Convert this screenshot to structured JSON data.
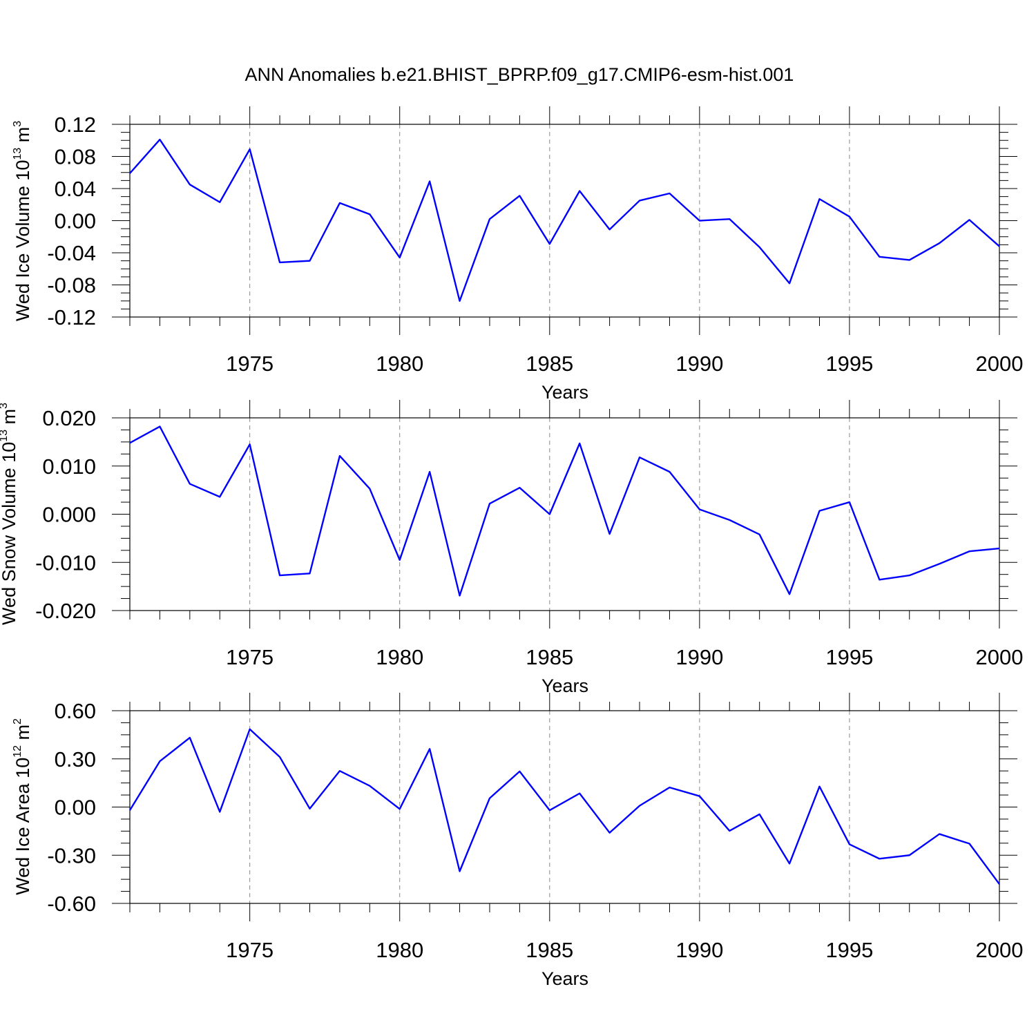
{
  "title": "ANN Anomalies b.e21.BHIST_BPRP.f09_g17.CMIP6-esm-hist.001",
  "colors": {
    "series": "#0000ff",
    "grid": "#888888",
    "axes": "#000000"
  },
  "chart_data": [
    {
      "type": "line",
      "ylabel": {
        "text": "Wed Ice Volume 10",
        "exp": "13",
        "unit": " m",
        "unit_exp": "3"
      },
      "xlabel": "Years",
      "xlim": [
        1971,
        2000
      ],
      "ylim": [
        -0.12,
        0.12
      ],
      "yticks": [
        "0.12",
        "0.08",
        "0.04",
        "0.00",
        "-0.04",
        "-0.08",
        "-0.12"
      ],
      "ytick_values": [
        0.12,
        0.08,
        0.04,
        0.0,
        -0.04,
        -0.08,
        -0.12
      ],
      "xticks": [
        "1975",
        "1980",
        "1985",
        "1990",
        "1995",
        "2000"
      ],
      "xtick_values": [
        1975,
        1980,
        1985,
        1990,
        1995,
        2000
      ],
      "grid": "vertical dashed at labeled years",
      "x": [
        1971,
        1972,
        1973,
        1974,
        1975,
        1976,
        1977,
        1978,
        1979,
        1980,
        1981,
        1982,
        1983,
        1984,
        1985,
        1986,
        1987,
        1988,
        1989,
        1990,
        1991,
        1992,
        1993,
        1994,
        1995,
        1996,
        1997,
        1998,
        1999,
        2000
      ],
      "values": [
        0.059,
        0.101,
        0.045,
        0.023,
        0.089,
        -0.052,
        -0.05,
        0.022,
        0.008,
        -0.046,
        0.049,
        -0.1,
        0.002,
        0.031,
        -0.029,
        0.037,
        -0.011,
        0.025,
        0.034,
        0.0,
        0.002,
        -0.033,
        -0.078,
        0.027,
        0.005,
        -0.045,
        -0.049,
        -0.028,
        0.001,
        -0.032
      ]
    },
    {
      "type": "line",
      "ylabel": {
        "text": "Wed Snow Volume 10",
        "exp": "13",
        "unit": " m",
        "unit_exp": "3"
      },
      "xlabel": "Years",
      "xlim": [
        1971,
        2000
      ],
      "ylim": [
        -0.02,
        0.02
      ],
      "yticks": [
        "0.020",
        "0.010",
        "0.000",
        "-0.010",
        "-0.020"
      ],
      "ytick_values": [
        0.02,
        0.01,
        0.0,
        -0.01,
        -0.02
      ],
      "xticks": [
        "1975",
        "1980",
        "1985",
        "1990",
        "1995",
        "2000"
      ],
      "xtick_values": [
        1975,
        1980,
        1985,
        1990,
        1995,
        2000
      ],
      "grid": "vertical dashed at labeled years",
      "x": [
        1971,
        1972,
        1973,
        1974,
        1975,
        1976,
        1977,
        1978,
        1979,
        1980,
        1981,
        1982,
        1983,
        1984,
        1985,
        1986,
        1987,
        1988,
        1989,
        1990,
        1991,
        1992,
        1993,
        1994,
        1995,
        1996,
        1997,
        1998,
        1999,
        2000
      ],
      "values": [
        0.0148,
        0.0182,
        0.0063,
        0.0036,
        0.0145,
        -0.0127,
        -0.0123,
        0.0121,
        0.0053,
        -0.0095,
        0.0088,
        -0.0169,
        0.0022,
        0.0055,
        0.0,
        0.0147,
        -0.0041,
        0.0118,
        0.0088,
        0.001,
        -0.0012,
        -0.0042,
        -0.0166,
        0.0007,
        0.0025,
        -0.0136,
        -0.0127,
        -0.0103,
        -0.0077,
        -0.0071
      ]
    },
    {
      "type": "line",
      "ylabel": {
        "text": "Wed Ice Area 10",
        "exp": "12",
        "unit": " m",
        "unit_exp": "2"
      },
      "xlabel": "Years",
      "xlim": [
        1971,
        2000
      ],
      "ylim": [
        -0.6,
        0.6
      ],
      "yticks": [
        "0.60",
        "0.30",
        "0.00",
        "-0.30",
        "-0.60"
      ],
      "ytick_values": [
        0.6,
        0.3,
        0.0,
        -0.3,
        -0.6
      ],
      "xticks": [
        "1975",
        "1980",
        "1985",
        "1990",
        "1995",
        "2000"
      ],
      "xtick_values": [
        1975,
        1980,
        1985,
        1990,
        1995,
        2000
      ],
      "grid": "vertical dashed at labeled years",
      "x": [
        1971,
        1972,
        1973,
        1974,
        1975,
        1976,
        1977,
        1978,
        1979,
        1980,
        1981,
        1982,
        1983,
        1984,
        1985,
        1986,
        1987,
        1988,
        1989,
        1990,
        1991,
        1992,
        1993,
        1994,
        1995,
        1996,
        1997,
        1998,
        1999,
        2000
      ],
      "values": [
        -0.02,
        0.285,
        0.432,
        -0.03,
        0.485,
        0.312,
        -0.01,
        0.225,
        0.132,
        -0.012,
        0.362,
        -0.4,
        0.055,
        0.222,
        -0.02,
        0.085,
        -0.16,
        0.008,
        0.122,
        0.068,
        -0.148,
        -0.045,
        -0.352,
        0.128,
        -0.232,
        -0.322,
        -0.3,
        -0.168,
        -0.228,
        -0.48
      ]
    }
  ]
}
